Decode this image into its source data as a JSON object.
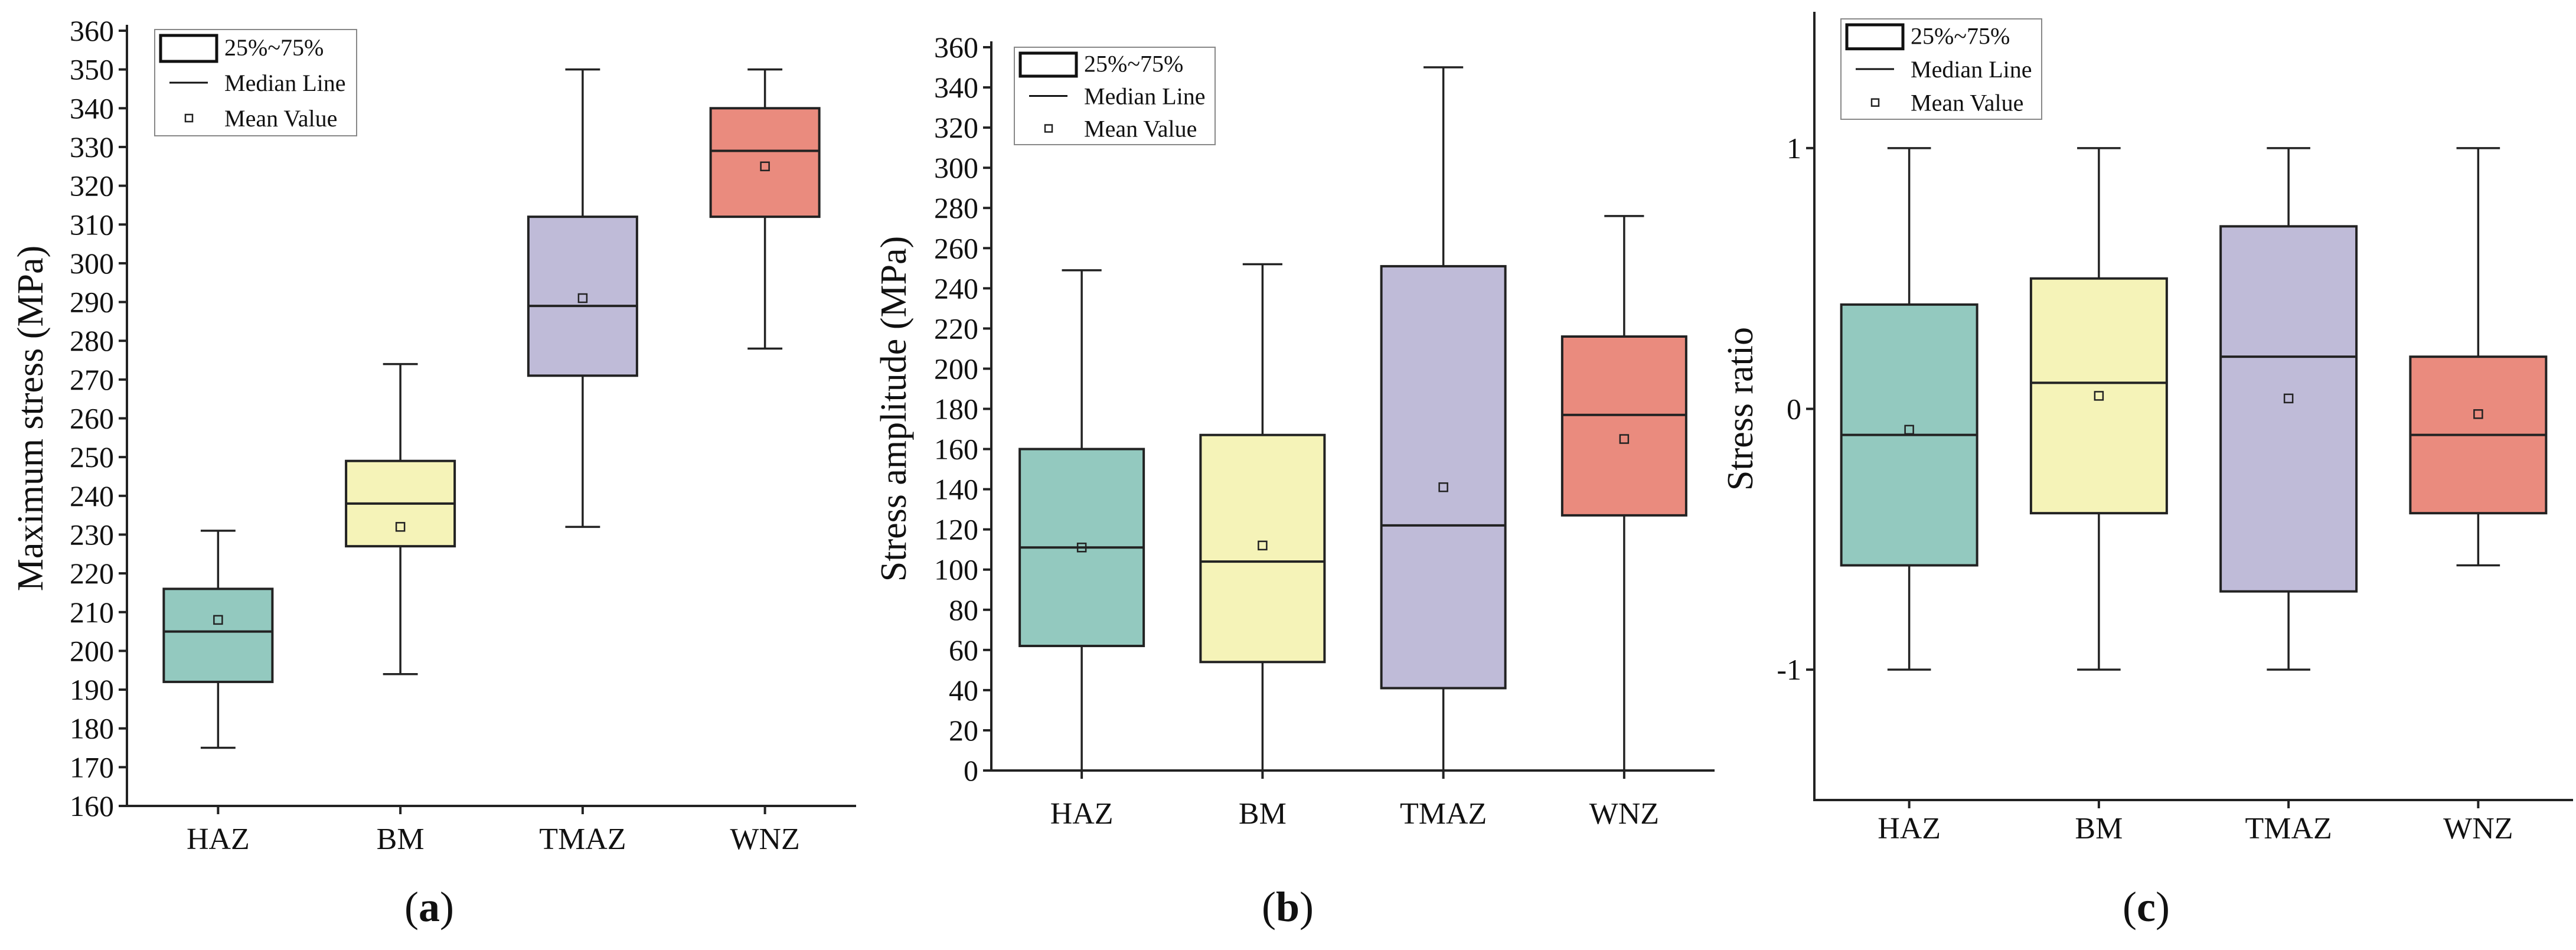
{
  "chart_data": [
    {
      "type": "box",
      "panel_label": "a",
      "title": "",
      "xlabel": "",
      "ylabel": "Maximum stress (MPa)",
      "ylim": [
        160,
        360
      ],
      "yticks": [
        160,
        170,
        180,
        190,
        200,
        210,
        220,
        230,
        240,
        250,
        260,
        270,
        280,
        290,
        300,
        310,
        320,
        330,
        340,
        350,
        360
      ],
      "categories": [
        "HAZ",
        "BM",
        "TMAZ",
        "WNZ"
      ],
      "colors": [
        "#93c9bf",
        "#f5f3b8",
        "#bfbbd8",
        "#ea8b7e"
      ],
      "boxes": [
        {
          "category": "HAZ",
          "min": 175,
          "q1": 192,
          "median": 205,
          "q3": 216,
          "max": 231,
          "mean": 208
        },
        {
          "category": "BM",
          "min": 194,
          "q1": 227,
          "median": 238,
          "q3": 249,
          "max": 274,
          "mean": 232
        },
        {
          "category": "TMAZ",
          "min": 232,
          "q1": 271,
          "median": 289,
          "q3": 312,
          "max": 350,
          "mean": 291
        },
        {
          "category": "WNZ",
          "min": 278,
          "q1": 312,
          "median": 329,
          "q3": 340,
          "max": 350,
          "mean": 325
        }
      ],
      "legend": [
        "25%~75%",
        "Median Line",
        "Mean Value"
      ],
      "legend_position": "top-left",
      "grid": false
    },
    {
      "type": "box",
      "panel_label": "b",
      "title": "",
      "xlabel": "",
      "ylabel": "Stress amplitude (MPa)",
      "ylim": [
        0,
        360
      ],
      "yticks": [
        0,
        20,
        40,
        60,
        80,
        100,
        120,
        140,
        160,
        180,
        200,
        220,
        240,
        260,
        280,
        300,
        320,
        340,
        360
      ],
      "categories": [
        "HAZ",
        "BM",
        "TMAZ",
        "WNZ"
      ],
      "colors": [
        "#93c9bf",
        "#f5f3b8",
        "#bfbbd8",
        "#ea8b7e"
      ],
      "boxes": [
        {
          "category": "HAZ",
          "min": 0,
          "q1": 62,
          "median": 111,
          "q3": 160,
          "max": 249,
          "mean": 111
        },
        {
          "category": "BM",
          "min": 0,
          "q1": 54,
          "median": 104,
          "q3": 167,
          "max": 252,
          "mean": 112
        },
        {
          "category": "TMAZ",
          "min": 0,
          "q1": 41,
          "median": 122,
          "q3": 251,
          "max": 350,
          "mean": 141
        },
        {
          "category": "WNZ",
          "min": 0,
          "q1": 127,
          "median": 177,
          "q3": 216,
          "max": 276,
          "mean": 165
        }
      ],
      "legend": [
        "25%~75%",
        "Median Line",
        "Mean Value"
      ],
      "legend_position": "top-right",
      "grid": false
    },
    {
      "type": "box",
      "panel_label": "c",
      "title": "",
      "xlabel": "",
      "ylabel": "Stress ratio",
      "ylim": [
        -1.5,
        1.5
      ],
      "yticks": [
        -1,
        0,
        1
      ],
      "categories": [
        "HAZ",
        "BM",
        "TMAZ",
        "WNZ"
      ],
      "colors": [
        "#93c9bf",
        "#f5f3b8",
        "#bfbbd8",
        "#ea8b7e"
      ],
      "boxes": [
        {
          "category": "HAZ",
          "min": -1,
          "q1": -0.6,
          "median": -0.1,
          "q3": 0.4,
          "max": 1,
          "mean": -0.08
        },
        {
          "category": "BM",
          "min": -1,
          "q1": -0.4,
          "median": 0.1,
          "q3": 0.5,
          "max": 1,
          "mean": 0.05
        },
        {
          "category": "TMAZ",
          "min": -1,
          "q1": -0.7,
          "median": 0.2,
          "q3": 0.7,
          "max": 1,
          "mean": 0.04
        },
        {
          "category": "WNZ",
          "min": -0.6,
          "q1": -0.4,
          "median": -0.1,
          "q3": 0.2,
          "max": 1,
          "mean": -0.02
        }
      ],
      "legend": [
        "25%~75%",
        "Median Line",
        "Mean Value"
      ],
      "legend_position": "top-left",
      "grid": false
    }
  ]
}
